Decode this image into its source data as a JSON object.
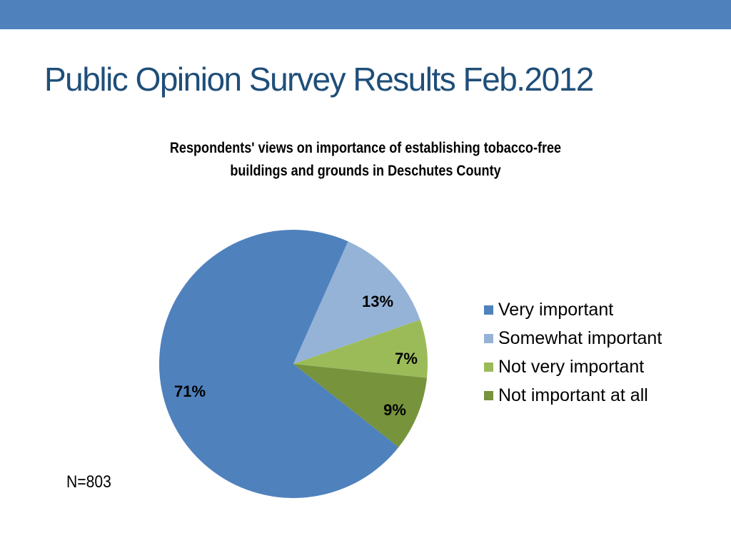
{
  "slide": {
    "title": "Public Opinion Survey Results Feb.2012",
    "footnote": "N=803"
  },
  "chart_data": {
    "type": "pie",
    "title_lines": [
      "Respondents' views on importance of establishing  tobacco-free",
      "buildings and grounds in Deschutes County"
    ],
    "categories": [
      "Very important",
      "Somewhat important",
      "Not very important",
      "Not important at all"
    ],
    "values": [
      71,
      13,
      7,
      9
    ],
    "labels": [
      "71%",
      "13%",
      "7%",
      "9%"
    ],
    "colors": [
      "#4f81bd",
      "#95b3d7",
      "#9bbb59",
      "#77933c"
    ],
    "legend_position": "right"
  }
}
